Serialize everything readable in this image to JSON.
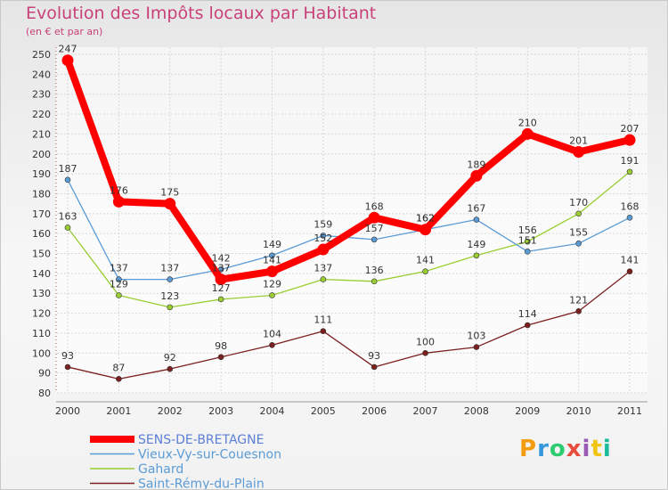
{
  "header": {
    "title": "Evolution des Impôts locaux par Habitant",
    "subtitle": "(en € et par an)"
  },
  "chart_data": {
    "type": "line",
    "title": "Evolution des Impôts locaux par Habitant",
    "ylabel": "(en € et par an)",
    "xlabel": "",
    "x": [
      2000,
      2001,
      2002,
      2003,
      2004,
      2005,
      2006,
      2007,
      2008,
      2009,
      2010,
      2011
    ],
    "ylim": [
      80,
      250
    ],
    "yticks": [
      80,
      90,
      100,
      110,
      120,
      130,
      140,
      150,
      160,
      170,
      180,
      190,
      200,
      210,
      220,
      230,
      240,
      250
    ],
    "grid": true,
    "legend_position": "bottom-left",
    "series": [
      {
        "name": "SENS-DE-BRETAGNE",
        "color": "#ff0000",
        "values": [
          247,
          176,
          175,
          137,
          141,
          152,
          168,
          162,
          189,
          210,
          201,
          207
        ]
      },
      {
        "name": "Vieux-Vy-sur-Couesnon",
        "color": "#5b9bd5",
        "values": [
          187,
          137,
          137,
          142,
          149,
          159,
          157,
          162,
          167,
          151,
          155,
          168
        ]
      },
      {
        "name": "Gahard",
        "color": "#9acd32",
        "values": [
          163,
          129,
          123,
          127,
          129,
          137,
          136,
          141,
          149,
          156,
          170,
          191
        ]
      },
      {
        "name": "Saint-Rémy-du-Plain",
        "color": "#7b1f1f",
        "values": [
          93,
          87,
          92,
          98,
          104,
          111,
          93,
          100,
          103,
          114,
          121,
          141
        ]
      }
    ]
  },
  "logo": {
    "letters": [
      "P",
      "r",
      "o",
      "x",
      "i",
      "t",
      "i"
    ],
    "colors": [
      "#f39c12",
      "#3498db",
      "#2ecc71",
      "#e74c3c",
      "#9b59b6",
      "#f1c40f",
      "#1abc9c"
    ]
  }
}
